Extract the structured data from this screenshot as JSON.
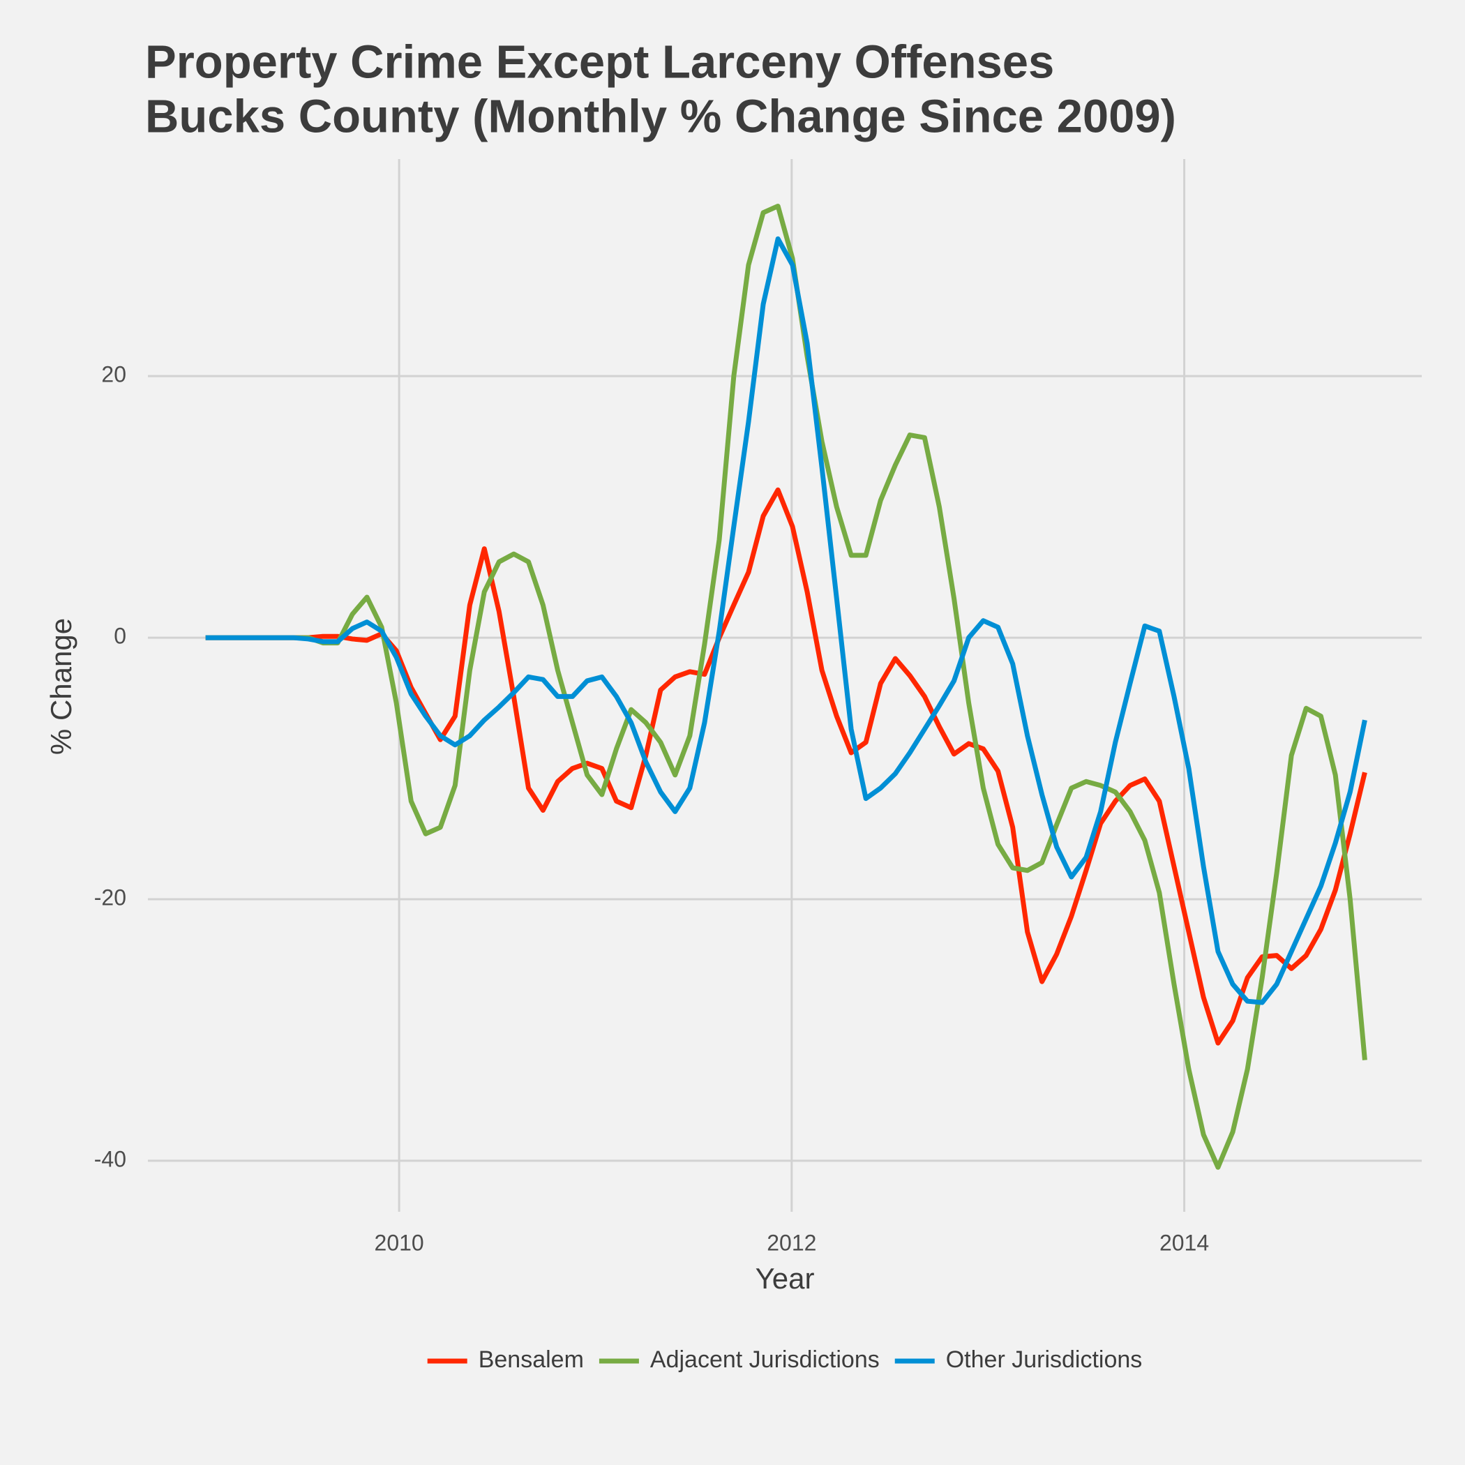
{
  "chart_data": {
    "type": "line",
    "title": [
      "Property Crime Except Larceny Offenses",
      "Bucks County (Monthly % Change Since 2009)"
    ],
    "x_label": "Year",
    "y_label": "% Change",
    "x": [
      2009.014,
      2009.089,
      2009.164,
      2009.238,
      2009.313,
      2009.388,
      2009.463,
      2009.537,
      2009.612,
      2009.687,
      2009.762,
      2009.836,
      2009.911,
      2009.986,
      2010.061,
      2010.135,
      2010.21,
      2010.285,
      2010.36,
      2010.434,
      2010.509,
      2010.584,
      2010.659,
      2010.733,
      2010.808,
      2010.883,
      2010.958,
      2011.033,
      2011.107,
      2011.182,
      2011.257,
      2011.332,
      2011.406,
      2011.481,
      2011.556,
      2011.631,
      2011.705,
      2011.78,
      2011.855,
      2011.93,
      2012.004,
      2012.079,
      2012.154,
      2012.229,
      2012.303,
      2012.378,
      2012.453,
      2012.528,
      2012.602,
      2012.677,
      2012.752,
      2012.827,
      2012.902,
      2012.976,
      2013.051,
      2013.126,
      2013.201,
      2013.275,
      2013.35,
      2013.425,
      2013.5,
      2013.574,
      2013.649,
      2013.724,
      2013.799,
      2013.873,
      2013.948,
      2014.023,
      2014.098,
      2014.172,
      2014.247,
      2014.322,
      2014.397,
      2014.471,
      2014.546,
      2014.621,
      2014.696,
      2014.77,
      2014.845,
      2014.92
    ],
    "series": [
      {
        "name": "Bensalem",
        "color": "#ff2700",
        "values": [
          0,
          0,
          0,
          0,
          0,
          0,
          0,
          0,
          0.1,
          0.1,
          -0.1,
          -0.2,
          0.3,
          -1,
          -3.8,
          -5.8,
          -7.8,
          -6,
          2.5,
          6.8,
          2,
          -4.5,
          -11.5,
          -13.2,
          -11,
          -10,
          -9.6,
          -10,
          -12.5,
          -13,
          -9,
          -4,
          -3,
          -2.6,
          -2.8,
          0,
          2.5,
          5,
          9.3,
          11.3,
          8.5,
          3.5,
          -2.5,
          -6,
          -8.8,
          -8,
          -3.5,
          -1.6,
          -2.9,
          -4.5,
          -6.8,
          -8.9,
          -8.1,
          -8.5,
          -10.2,
          -14.5,
          -22.5,
          -26.3,
          -24.2,
          -21.3,
          -17.8,
          -14.2,
          -12.5,
          -11.3,
          -10.8,
          -12.5,
          -17.5,
          -22.5,
          -27.5,
          -31,
          -29.3,
          -26,
          -24.4,
          -24.3,
          -25.3,
          -24.3,
          -22.3,
          -19.3,
          -15,
          -10.3
        ]
      },
      {
        "name": "Adjacent Jurisdictions",
        "color": "#77ab43",
        "values": [
          0,
          0,
          0,
          0,
          0,
          0,
          0,
          0,
          -0.4,
          -0.4,
          1.8,
          3.1,
          0.8,
          -5,
          -12.5,
          -15,
          -14.5,
          -11.3,
          -2.5,
          3.5,
          5.8,
          6.4,
          5.8,
          2.5,
          -2.5,
          -6.5,
          -10.5,
          -12,
          -8.5,
          -5.5,
          -6.5,
          -8,
          -10.5,
          -7.5,
          -0.5,
          7.5,
          20,
          28.5,
          32.5,
          33,
          29,
          21.5,
          15,
          10,
          6.3,
          6.3,
          10.5,
          13.2,
          15.5,
          15.3,
          10,
          3,
          -5,
          -11.5,
          -15.8,
          -17.6,
          -17.8,
          -17.2,
          -14.3,
          -11.5,
          -11,
          -11.3,
          -11.8,
          -13.3,
          -15.5,
          -19.5,
          -26.5,
          -33,
          -38,
          -40.5,
          -37.8,
          -33,
          -26,
          -18,
          -9,
          -5.4,
          -6,
          -10.5,
          -20,
          -32.3
        ]
      },
      {
        "name": "Other Jurisdictions",
        "color": "#008fd5",
        "values": [
          0,
          0,
          0,
          0,
          0,
          0,
          0,
          -0.1,
          -0.3,
          -0.3,
          0.7,
          1.2,
          0.5,
          -1.5,
          -4.3,
          -6,
          -7.5,
          -8.2,
          -7.5,
          -6.3,
          -5.3,
          -4.2,
          -3,
          -3.2,
          -4.5,
          -4.5,
          -3.3,
          -3,
          -4.5,
          -6.5,
          -9.5,
          -11.8,
          -13.3,
          -11.5,
          -6.5,
          0.5,
          8.5,
          16.5,
          25.5,
          30.5,
          28.5,
          22.5,
          13,
          3,
          -7,
          -12.3,
          -11.5,
          -10.4,
          -8.8,
          -7,
          -5.2,
          -3.3,
          0,
          1.3,
          0.8,
          -2,
          -7.5,
          -12,
          -16,
          -18.3,
          -16.8,
          -13.3,
          -8,
          -3.5,
          0.9,
          0.5,
          -4.5,
          -10,
          -17.5,
          -24,
          -26.5,
          -27.8,
          -27.9,
          -26.5,
          -24,
          -21.5,
          -19,
          -15.7,
          -11.8,
          -6.3
        ]
      }
    ],
    "xlim": [
      2008.72,
      2015.21
    ],
    "ylim": [
      -43.9,
      36.6
    ],
    "xticks": [
      2010,
      2012,
      2014
    ],
    "yticks": [
      -40,
      -20,
      0,
      20
    ],
    "grid": true,
    "legend_position": "bottom"
  }
}
